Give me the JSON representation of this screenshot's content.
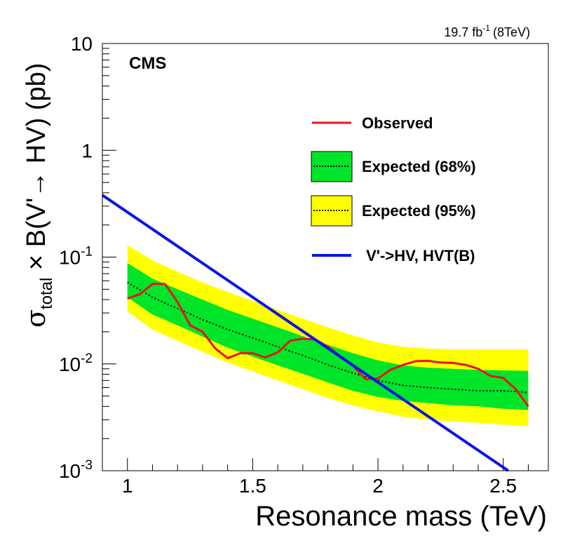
{
  "header": {
    "lumi_value": "19.7 fb",
    "lumi_exp": "-1",
    "lumi_energy": "(8TeV)"
  },
  "colors": {
    "observed": "#e8141a",
    "band68": "#00e52a",
    "band95": "#ffff00",
    "theory": "#0a14e6",
    "expected": "#000000"
  },
  "chart_data": {
    "type": "line",
    "title": "",
    "experiment_label": "CMS",
    "xlabel": "Resonance mass (TeV)",
    "ylabel": {
      "prefix": "σ",
      "sub": "total",
      "middle": " × B(V'→ HV) (pb)"
    },
    "xlim": [
      0.9,
      2.68
    ],
    "ylim": [
      0.001,
      10
    ],
    "yscale": "log",
    "x_ticks": [
      "1",
      "1.5",
      "2",
      "2.5"
    ],
    "x_tick_values": [
      1,
      1.5,
      2,
      2.5
    ],
    "y_ticks": [
      {
        "value": 10,
        "base": "10",
        "exp": ""
      },
      {
        "value": 1,
        "base": "1",
        "exp": ""
      },
      {
        "value": 0.1,
        "base": "10",
        "exp": "-1"
      },
      {
        "value": 0.01,
        "base": "10",
        "exp": "-2"
      },
      {
        "value": 0.001,
        "base": "10",
        "exp": "-3"
      }
    ],
    "legend": {
      "position": "top-right",
      "entries": [
        {
          "key": "observed",
          "label": "Observed"
        },
        {
          "key": "exp68",
          "label": "Expected (68%)"
        },
        {
          "key": "exp95",
          "label": "Expected (95%)"
        },
        {
          "key": "theory",
          "label": " V'->HV, HVT(B)"
        }
      ]
    },
    "series": {
      "observed": {
        "name": "Observed",
        "x": [
          1.0,
          1.05,
          1.1,
          1.15,
          1.2,
          1.25,
          1.3,
          1.35,
          1.4,
          1.45,
          1.5,
          1.55,
          1.6,
          1.65,
          1.7,
          1.75,
          1.8,
          1.85,
          1.9,
          1.95,
          2.0,
          2.05,
          2.1,
          2.15,
          2.2,
          2.25,
          2.3,
          2.35,
          2.4,
          2.45,
          2.5,
          2.55,
          2.6
        ],
        "y": [
          0.041,
          0.045,
          0.056,
          0.056,
          0.038,
          0.023,
          0.02,
          0.014,
          0.0113,
          0.0126,
          0.0126,
          0.0115,
          0.0128,
          0.0165,
          0.0172,
          0.0169,
          0.0145,
          0.0118,
          0.0096,
          0.0072,
          0.0073,
          0.0088,
          0.0098,
          0.0106,
          0.0107,
          0.0103,
          0.0102,
          0.0098,
          0.009,
          0.0077,
          0.0074,
          0.0058,
          0.004
        ]
      },
      "expected": {
        "name": "Expected median",
        "x": [
          1.0,
          1.1,
          1.2,
          1.3,
          1.4,
          1.5,
          1.6,
          1.7,
          1.8,
          1.9,
          2.0,
          2.1,
          2.2,
          2.3,
          2.4,
          2.5,
          2.6
        ],
        "y": [
          0.058,
          0.042,
          0.033,
          0.026,
          0.021,
          0.0175,
          0.0145,
          0.012,
          0.0098,
          0.0082,
          0.007,
          0.0063,
          0.006,
          0.0058,
          0.0056,
          0.0056,
          0.0054
        ]
      },
      "band68": {
        "name": "Expected (68%)",
        "x": [
          1.0,
          1.1,
          1.2,
          1.3,
          1.4,
          1.5,
          1.6,
          1.7,
          1.8,
          1.9,
          2.0,
          2.1,
          2.2,
          2.3,
          2.4,
          2.5,
          2.6
        ],
        "lo": [
          0.042,
          0.029,
          0.023,
          0.018,
          0.0142,
          0.0117,
          0.0097,
          0.0081,
          0.0067,
          0.0056,
          0.0049,
          0.0045,
          0.0043,
          0.0041,
          0.004,
          0.0038,
          0.0037
        ],
        "hi": [
          0.088,
          0.063,
          0.05,
          0.04,
          0.032,
          0.0265,
          0.022,
          0.0182,
          0.0151,
          0.0126,
          0.0108,
          0.0097,
          0.0092,
          0.009,
          0.0088,
          0.0087,
          0.0086
        ]
      },
      "band95": {
        "name": "Expected (95%)",
        "x": [
          1.0,
          1.1,
          1.2,
          1.3,
          1.4,
          1.5,
          1.6,
          1.7,
          1.8,
          1.9,
          2.0,
          2.1,
          2.2,
          2.3,
          2.4,
          2.5,
          2.6
        ],
        "lo": [
          0.031,
          0.021,
          0.0165,
          0.013,
          0.0103,
          0.0085,
          0.007,
          0.0058,
          0.0048,
          0.0041,
          0.0036,
          0.0032,
          0.003,
          0.0029,
          0.0028,
          0.0027,
          0.0026
        ],
        "hi": [
          0.13,
          0.093,
          0.073,
          0.058,
          0.047,
          0.039,
          0.032,
          0.0265,
          0.022,
          0.0185,
          0.0159,
          0.0145,
          0.0139,
          0.0137,
          0.0137,
          0.0137,
          0.0137
        ]
      },
      "theory": {
        "name": "V'->HV, HVT(B)",
        "x": [
          0.9,
          2.52
        ],
        "y": [
          0.38,
          0.001
        ]
      }
    }
  }
}
